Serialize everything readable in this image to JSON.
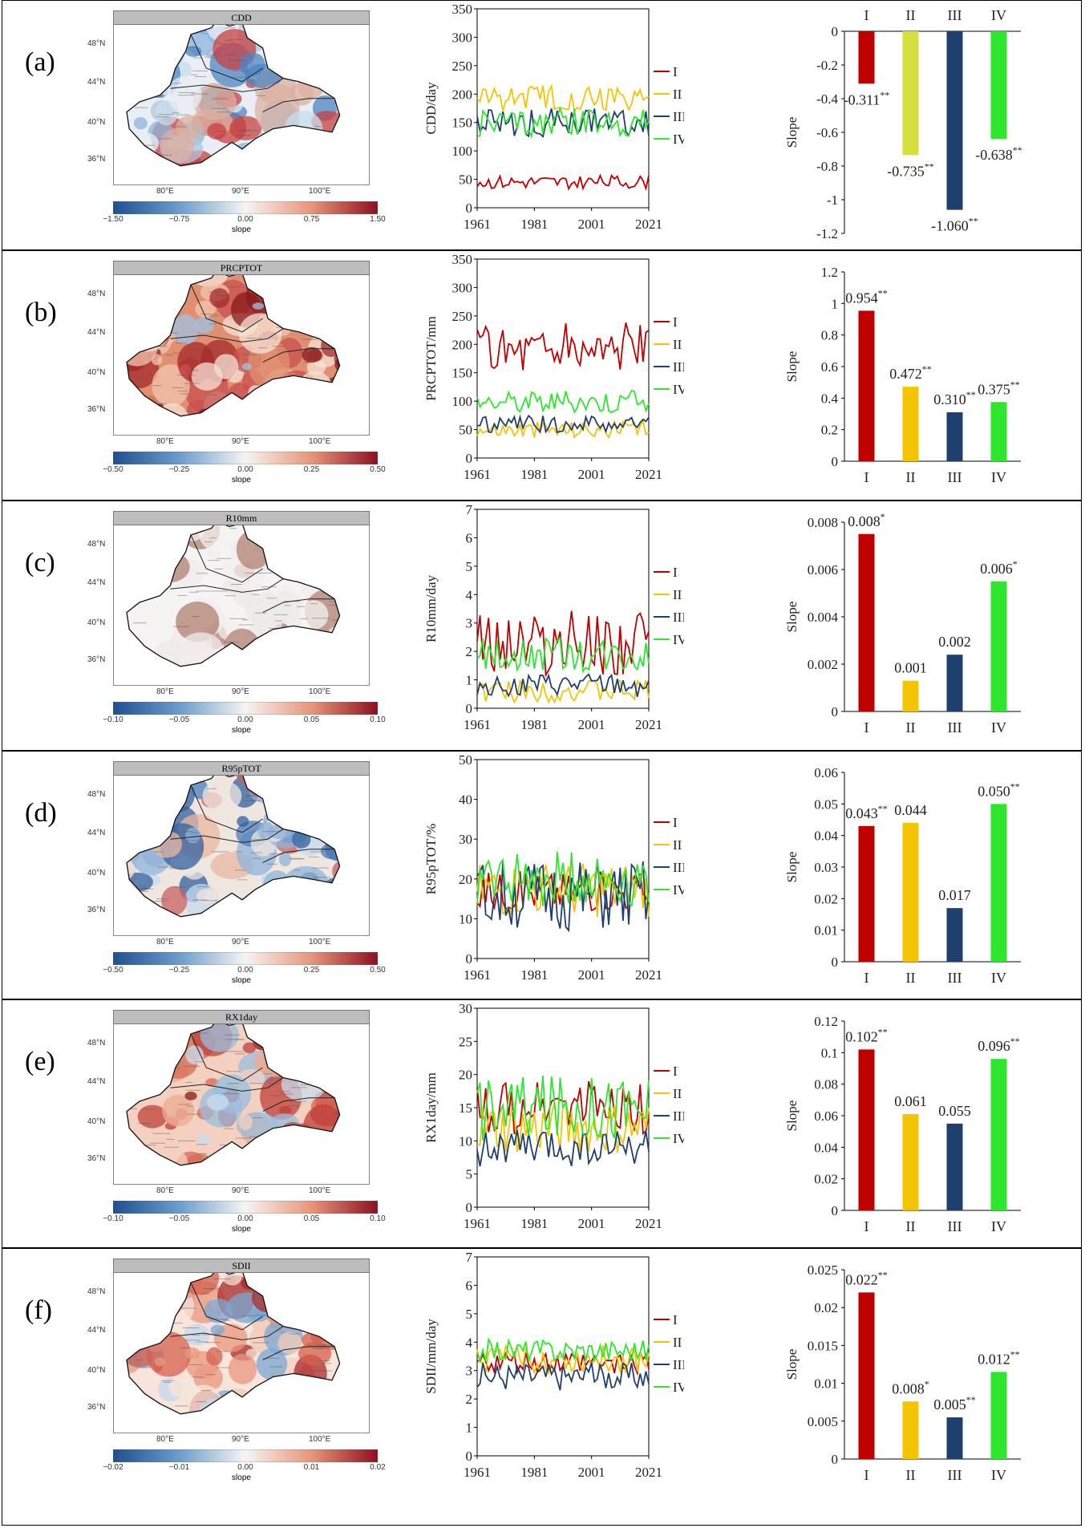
{
  "map_lon_ticks": [
    "80°E",
    "90°E",
    "100°E"
  ],
  "map_lat_ticks": [
    "48°N",
    "44°N",
    "40°N",
    "36°N"
  ],
  "colorbar_title": "slope",
  "colors": {
    "I": "#c00000",
    "II": "#f5c400",
    "III": "#1f3f6e",
    "IV": "#2ee62e",
    "II_bar_a": "#d4e040"
  },
  "series_names": [
    "I",
    "II",
    "III",
    "IV"
  ],
  "years": {
    "start": 1961,
    "end": 2021,
    "ticks": [
      "1961",
      "1981",
      "2001",
      "2021"
    ]
  },
  "panels": [
    {
      "letter": "(a)",
      "map_title": "CDD",
      "colorbar_ticks": [
        "−1.50",
        "−0.75",
        "0.00",
        "0.75",
        "1.50"
      ],
      "line_chart": {
        "ylabel": "CDD/day",
        "ylim": [
          0,
          350
        ],
        "yticks": [
          "0",
          "50",
          "100",
          "150",
          "200",
          "250",
          "300",
          "350"
        ],
        "series": [
          {
            "name": "I",
            "mean": 45,
            "amp": 12
          },
          {
            "name": "II",
            "mean": 195,
            "amp": 25
          },
          {
            "name": "III",
            "mean": 150,
            "amp": 25
          },
          {
            "name": "IV",
            "mean": 150,
            "amp": 25
          }
        ]
      },
      "chart_data": {
        "type": "bar",
        "categories": [
          "I",
          "II",
          "III",
          "IV"
        ],
        "values": [
          -0.311,
          -0.735,
          -1.06,
          -0.638
        ],
        "value_labels": [
          "-0.311",
          "-0.735",
          "-1.060",
          "-0.638"
        ],
        "significance": [
          "**",
          "**",
          "**",
          "**"
        ],
        "ylabel": "Slope",
        "ylim": [
          -1.2,
          0
        ],
        "yticks": [
          "0",
          "-0.2",
          "-0.4",
          "-0.6",
          "-0.8",
          "-1",
          "-1.2"
        ],
        "categories_position": "top"
      }
    },
    {
      "letter": "(b)",
      "map_title": "PRCPTOT",
      "colorbar_ticks": [
        "−0.50",
        "−0.25",
        "0.00",
        "0.25",
        "0.50"
      ],
      "line_chart": {
        "ylabel": "PRCPTOT/mm",
        "ylim": [
          0,
          350
        ],
        "yticks": [
          "0",
          "50",
          "100",
          "150",
          "200",
          "250",
          "300",
          "350"
        ],
        "series": [
          {
            "name": "I",
            "mean": 195,
            "amp": 45
          },
          {
            "name": "II",
            "mean": 50,
            "amp": 15
          },
          {
            "name": "III",
            "mean": 60,
            "amp": 15
          },
          {
            "name": "IV",
            "mean": 100,
            "amp": 20
          }
        ]
      },
      "chart_data": {
        "type": "bar",
        "categories": [
          "I",
          "II",
          "III",
          "IV"
        ],
        "values": [
          0.954,
          0.472,
          0.31,
          0.375
        ],
        "value_labels": [
          "0.954",
          "0.472",
          "0.310",
          "0.375"
        ],
        "significance": [
          "**",
          "**",
          "**",
          "**"
        ],
        "ylabel": "Slope",
        "ylim": [
          0,
          1.2
        ],
        "yticks": [
          "0",
          "0.2",
          "0.4",
          "0.6",
          "0.8",
          "1",
          "1.2"
        ]
      }
    },
    {
      "letter": "(c)",
      "map_title": "R10mm",
      "colorbar_ticks": [
        "−0.10",
        "−0.05",
        "0.00",
        "0.05",
        "0.10"
      ],
      "line_chart": {
        "ylabel": "R10mm/day",
        "ylim": [
          0,
          7
        ],
        "yticks": [
          "0",
          "1",
          "2",
          "3",
          "4",
          "5",
          "6",
          "7"
        ],
        "series": [
          {
            "name": "I",
            "mean": 2.3,
            "amp": 1.2
          },
          {
            "name": "II",
            "mean": 0.6,
            "amp": 0.4
          },
          {
            "name": "III",
            "mean": 0.8,
            "amp": 0.4
          },
          {
            "name": "IV",
            "mean": 1.9,
            "amp": 0.6
          }
        ]
      },
      "chart_data": {
        "type": "bar",
        "categories": [
          "I",
          "II",
          "III",
          "IV"
        ],
        "values": [
          0.0075,
          0.0013,
          0.0024,
          0.0055
        ],
        "value_labels": [
          "0.008",
          "0.001",
          "0.002",
          "0.006"
        ],
        "significance": [
          "*",
          "",
          "",
          "*"
        ],
        "ylabel": "Slope",
        "ylim": [
          0,
          0.008
        ],
        "yticks": [
          "0",
          "0.002",
          "0.004",
          "0.006",
          "0.008"
        ]
      }
    },
    {
      "letter": "(d)",
      "map_title": "R95pTOT",
      "colorbar_ticks": [
        "−0.50",
        "−0.25",
        "0.00",
        "0.25",
        "0.50"
      ],
      "line_chart": {
        "ylabel": "R95pTOT/%",
        "ylim": [
          0,
          50
        ],
        "yticks": [
          "0",
          "10",
          "20",
          "30",
          "40",
          "50"
        ],
        "series": [
          {
            "name": "I",
            "mean": 17,
            "amp": 5
          },
          {
            "name": "II",
            "mean": 17,
            "amp": 7
          },
          {
            "name": "III",
            "mean": 16,
            "amp": 9
          },
          {
            "name": "IV",
            "mean": 20,
            "amp": 7
          }
        ]
      },
      "chart_data": {
        "type": "bar",
        "categories": [
          "I",
          "II",
          "III",
          "IV"
        ],
        "values": [
          0.043,
          0.044,
          0.017,
          0.05
        ],
        "value_labels": [
          "0.043",
          "0.044",
          "0.017",
          "0.050"
        ],
        "significance": [
          "**",
          "",
          "",
          "**"
        ],
        "ylabel": "Slope",
        "ylim": [
          0,
          0.06
        ],
        "yticks": [
          "0",
          "0.01",
          "0.02",
          "0.03",
          "0.04",
          "0.05",
          "0.06"
        ]
      }
    },
    {
      "letter": "(e)",
      "map_title": "RX1day",
      "colorbar_ticks": [
        "−0.10",
        "−0.05",
        "0.00",
        "0.05",
        "0.10"
      ],
      "line_chart": {
        "ylabel": "RX1day/mm",
        "ylim": [
          0,
          30
        ],
        "yticks": [
          "0",
          "5",
          "10",
          "15",
          "20",
          "25",
          "30"
        ],
        "series": [
          {
            "name": "I",
            "mean": 15,
            "amp": 4
          },
          {
            "name": "II",
            "mean": 12,
            "amp": 4
          },
          {
            "name": "III",
            "mean": 9,
            "amp": 3
          },
          {
            "name": "IV",
            "mean": 15,
            "amp": 5
          }
        ]
      },
      "chart_data": {
        "type": "bar",
        "categories": [
          "I",
          "II",
          "III",
          "IV"
        ],
        "values": [
          0.102,
          0.061,
          0.055,
          0.096
        ],
        "value_labels": [
          "0.102",
          "0.061",
          "0.055",
          "0.096"
        ],
        "significance": [
          "**",
          "",
          "",
          "**"
        ],
        "ylabel": "Slope",
        "ylim": [
          0,
          0.12
        ],
        "yticks": [
          "0",
          "0.02",
          "0.04",
          "0.06",
          "0.08",
          "0.1",
          "0.12"
        ]
      }
    },
    {
      "letter": "(f)",
      "map_title": "SDII",
      "colorbar_ticks": [
        "−0.02",
        "−0.01",
        "0.00",
        "0.01",
        "0.02"
      ],
      "line_chart": {
        "ylabel": "SDII/mm/day",
        "ylim": [
          0,
          7
        ],
        "yticks": [
          "0",
          "1",
          "2",
          "3",
          "4",
          "5",
          "6",
          "7"
        ],
        "series": [
          {
            "name": "I",
            "mean": 3.3,
            "amp": 0.4
          },
          {
            "name": "II",
            "mean": 3.4,
            "amp": 0.5
          },
          {
            "name": "III",
            "mean": 2.8,
            "amp": 0.5
          },
          {
            "name": "IV",
            "mean": 3.7,
            "amp": 0.4
          }
        ]
      },
      "chart_data": {
        "type": "bar",
        "categories": [
          "I",
          "II",
          "III",
          "IV"
        ],
        "values": [
          0.022,
          0.0076,
          0.0055,
          0.0115
        ],
        "value_labels": [
          "0.022",
          "0.008",
          "0.005",
          "0.012"
        ],
        "significance": [
          "**",
          "*",
          "**",
          "**"
        ],
        "ylabel": "Slope",
        "ylim": [
          0,
          0.025
        ],
        "yticks": [
          "0",
          "0.005",
          "0.01",
          "0.015",
          "0.02",
          "0.025"
        ]
      }
    }
  ]
}
